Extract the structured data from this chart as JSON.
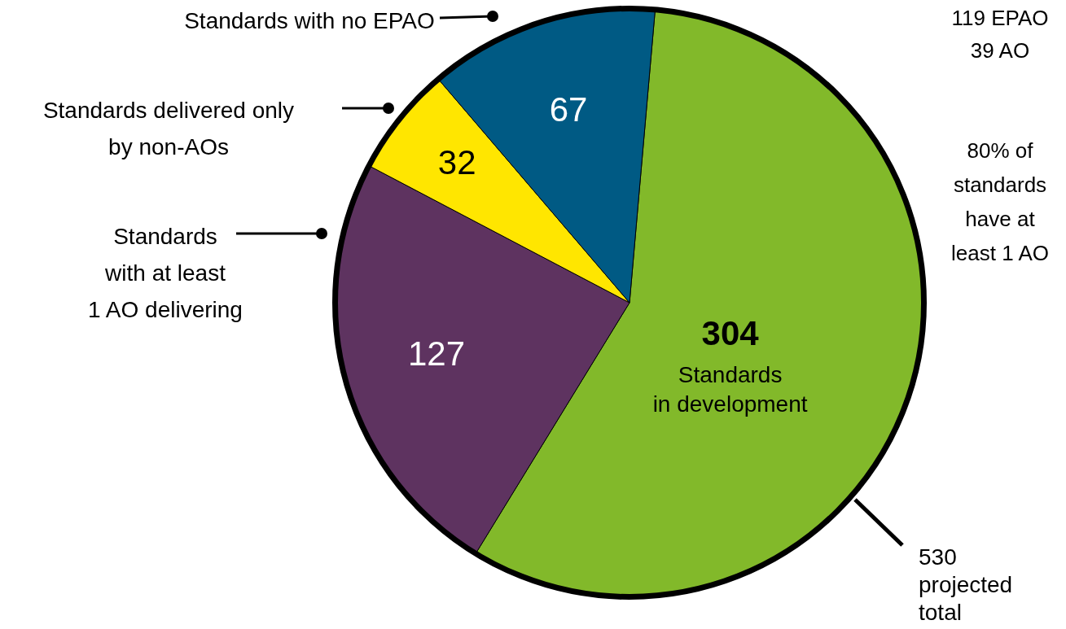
{
  "chart_data": {
    "type": "pie",
    "categories": [
      "Standards in development",
      "Standards with at least 1 AO delivering",
      "Standards delivered only by non-AOs",
      "Standards with no EPAO"
    ],
    "values": [
      304,
      127,
      32,
      67
    ],
    "colors": [
      "#82b92a",
      "#5e3360",
      "#ffe600",
      "#005a84"
    ],
    "data_labels": true,
    "annotations": [
      "530 projected total",
      "119 EPAO",
      "39 AO",
      "80% of standards have at least 1 AO"
    ]
  }
}
